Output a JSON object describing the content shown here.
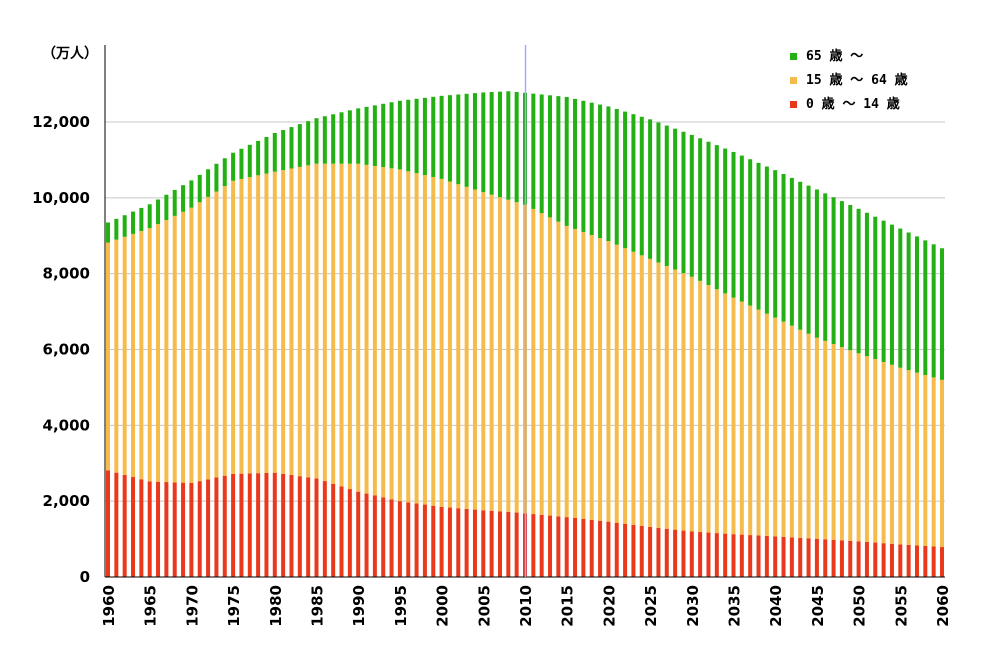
{
  "chart_data": {
    "type": "bar",
    "stacked": true,
    "ylabel": "（万人）",
    "ylim": [
      0,
      14000
    ],
    "yticks": [
      0,
      2000,
      4000,
      6000,
      8000,
      10000,
      12000
    ],
    "ytick_labels": [
      "0",
      "2,000",
      "4,000",
      "6,000",
      "8,000",
      "10,000",
      "12,000"
    ],
    "xtick_labels": [
      "1960",
      "1965",
      "1970",
      "1975",
      "1980",
      "1985",
      "1990",
      "1995",
      "2000",
      "2005",
      "2010",
      "2015",
      "2020",
      "2025",
      "2030",
      "2035",
      "2040",
      "2045",
      "2050",
      "2055",
      "2060"
    ],
    "x_start": 1960,
    "x_end": 2060,
    "reference_line_x": 2010,
    "grid": true,
    "legend_position": "top-right",
    "colors": {
      "age_0_14": "#e8391d",
      "age_15_64": "#f5bc4c",
      "age_65_plus": "#22b012",
      "reference_line": "#a7a7ff",
      "grid": "#c8c8c8"
    },
    "legend": [
      {
        "label": "65 歳 ～",
        "color": "#22b012"
      },
      {
        "label": "15 歳 ～ 64 歳",
        "color": "#f5bc4c"
      },
      {
        "label": " 0 歳 ～ 14 歳",
        "color": "#e8391d"
      }
    ],
    "keyframes": {
      "years": [
        1960,
        1965,
        1970,
        1975,
        1980,
        1985,
        1990,
        1995,
        2000,
        2005,
        2008,
        2010,
        2015,
        2020,
        2025,
        2030,
        2035,
        2040,
        2045,
        2050,
        2055,
        2060
      ],
      "total": [
        9350,
        9830,
        10460,
        11190,
        11710,
        12100,
        12360,
        12560,
        12690,
        12780,
        12810,
        12770,
        12660,
        12410,
        12070,
        11660,
        11210,
        10730,
        10220,
        9710,
        9190,
        8670
      ],
      "age_0_14": [
        2810,
        2520,
        2480,
        2720,
        2750,
        2600,
        2250,
        2000,
        1850,
        1760,
        1720,
        1680,
        1580,
        1460,
        1320,
        1200,
        1130,
        1070,
        1010,
        940,
        860,
        790
      ],
      "age_15_64": [
        8820,
        9200,
        9740,
        10450,
        10690,
        10900,
        10900,
        10750,
        10500,
        10150,
        9950,
        9820,
        9260,
        8860,
        8390,
        7920,
        7370,
        6840,
        6310,
        5900,
        5520,
        5200
      ]
    }
  }
}
